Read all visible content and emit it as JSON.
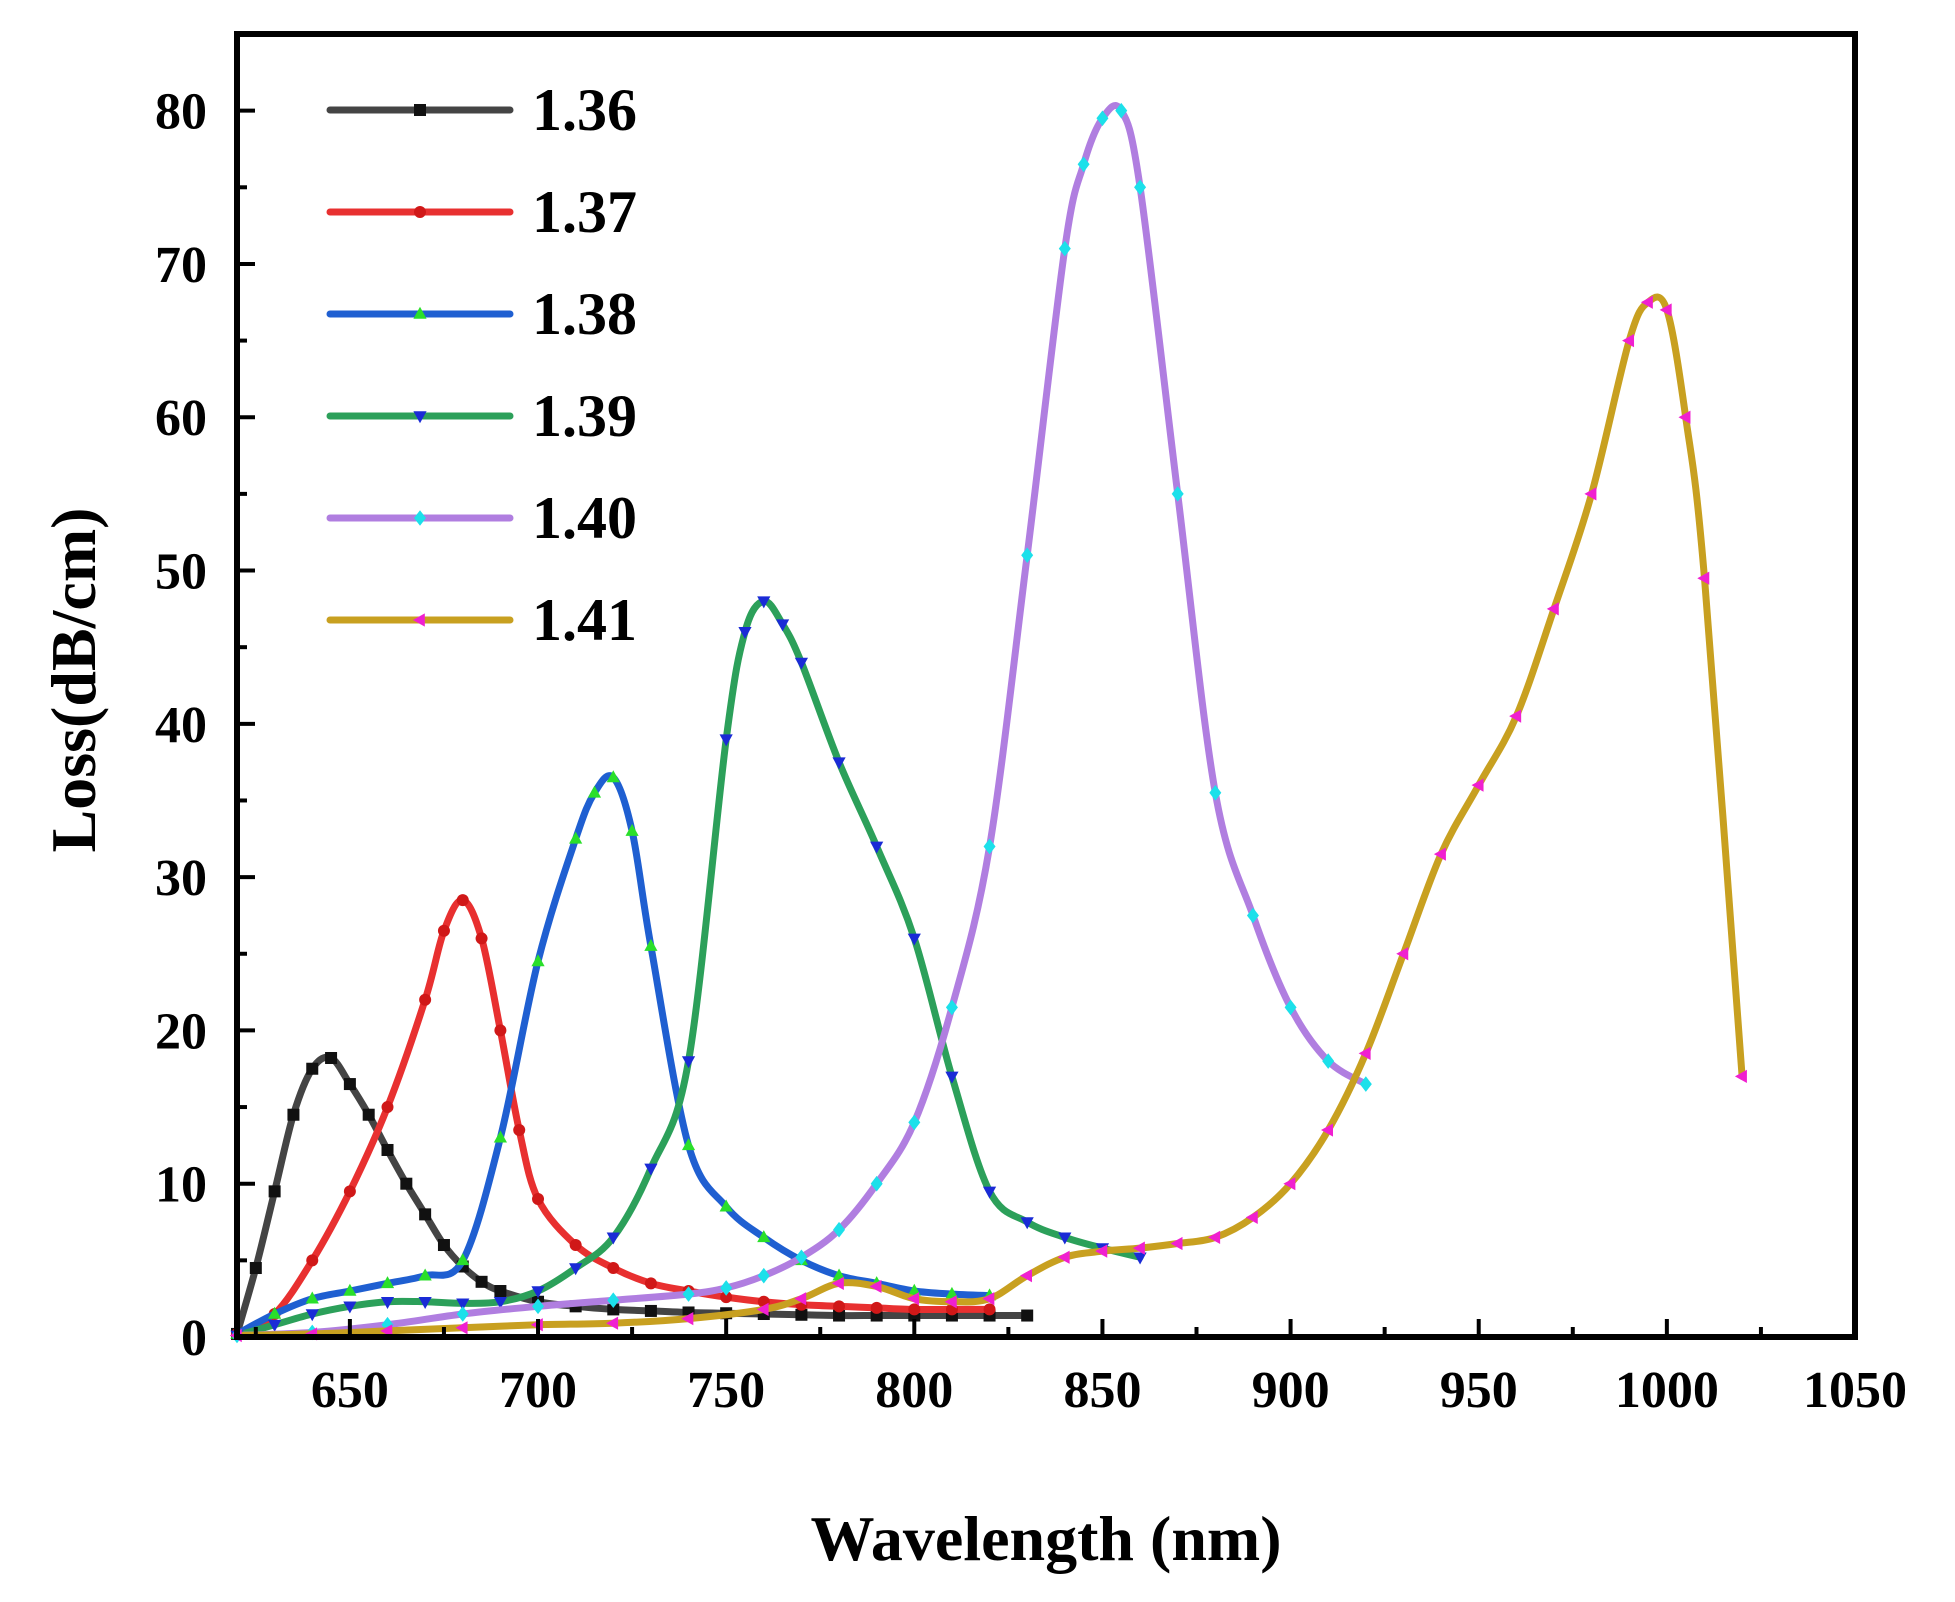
{
  "chart_data": {
    "type": "line",
    "title": "",
    "xlabel": "Wavelength (nm)",
    "ylabel": "Loss(dB/cm)",
    "xlim": [
      620,
      1050
    ],
    "ylim": [
      0,
      85
    ],
    "xticks": [
      650,
      700,
      750,
      800,
      850,
      900,
      950,
      1000,
      1050
    ],
    "yticks": [
      0,
      10,
      20,
      30,
      40,
      50,
      60,
      70,
      80
    ],
    "legend_position": "top-left",
    "grid": false,
    "series": [
      {
        "name": "1.36",
        "color": "#444444",
        "marker": "square",
        "marker_color": "#111111",
        "x": [
          620,
          625,
          630,
          635,
          640,
          645,
          650,
          655,
          660,
          665,
          670,
          675,
          680,
          685,
          690,
          700,
          710,
          720,
          730,
          740,
          750,
          760,
          770,
          780,
          790,
          800,
          810,
          820,
          830
        ],
        "y": [
          0.2,
          4.5,
          9.5,
          14.5,
          17.5,
          18.2,
          16.5,
          14.5,
          12.2,
          10.0,
          8.0,
          6.0,
          4.6,
          3.6,
          3.0,
          2.3,
          2.0,
          1.8,
          1.7,
          1.6,
          1.55,
          1.5,
          1.45,
          1.4,
          1.4,
          1.4,
          1.4,
          1.4,
          1.4
        ]
      },
      {
        "name": "1.37",
        "color": "#e83030",
        "marker": "circle",
        "marker_color": "#d01818",
        "x": [
          620,
          630,
          640,
          650,
          660,
          670,
          675,
          680,
          685,
          690,
          695,
          700,
          710,
          720,
          730,
          740,
          750,
          760,
          770,
          780,
          790,
          800,
          810,
          820
        ],
        "y": [
          0.2,
          1.5,
          5.0,
          9.5,
          15.0,
          22.0,
          26.5,
          28.5,
          26.0,
          20.0,
          13.5,
          9.0,
          6.0,
          4.5,
          3.5,
          3.0,
          2.6,
          2.3,
          2.1,
          2.0,
          1.9,
          1.8,
          1.8,
          1.8
        ]
      },
      {
        "name": "1.38",
        "color": "#1f5fd1",
        "marker": "triangle-up",
        "marker_color": "#2adf2a",
        "x": [
          620,
          630,
          640,
          650,
          660,
          670,
          680,
          690,
          700,
          710,
          715,
          720,
          725,
          730,
          740,
          750,
          760,
          770,
          780,
          790,
          800,
          810,
          820
        ],
        "y": [
          0.2,
          1.5,
          2.5,
          3.0,
          3.5,
          4.0,
          5.0,
          13.0,
          24.5,
          32.5,
          35.5,
          36.5,
          33.0,
          25.5,
          12.5,
          8.5,
          6.5,
          5.0,
          4.0,
          3.5,
          3.0,
          2.8,
          2.7
        ]
      },
      {
        "name": "1.39",
        "color": "#2ca05a",
        "marker": "triangle-down",
        "marker_color": "#1a2bd6",
        "x": [
          620,
          630,
          640,
          650,
          660,
          670,
          680,
          690,
          700,
          710,
          720,
          730,
          740,
          750,
          755,
          760,
          765,
          770,
          780,
          790,
          800,
          810,
          820,
          830,
          840,
          850,
          860
        ],
        "y": [
          0.1,
          0.8,
          1.5,
          2.0,
          2.3,
          2.3,
          2.2,
          2.3,
          3.0,
          4.5,
          6.5,
          11.0,
          18.0,
          39.0,
          46.0,
          48.0,
          46.5,
          44.0,
          37.5,
          32.0,
          26.0,
          17.0,
          9.5,
          7.5,
          6.5,
          5.8,
          5.2
        ]
      },
      {
        "name": "1.40",
        "color": "#b07ee0",
        "marker": "diamond",
        "marker_color": "#1ce0ea",
        "x": [
          620,
          640,
          660,
          680,
          700,
          720,
          740,
          750,
          760,
          770,
          780,
          790,
          800,
          810,
          820,
          830,
          840,
          845,
          850,
          855,
          860,
          870,
          880,
          890,
          900,
          910,
          920
        ],
        "y": [
          0.1,
          0.3,
          0.8,
          1.5,
          2.0,
          2.4,
          2.8,
          3.2,
          4.0,
          5.2,
          7.0,
          10.0,
          14.0,
          21.5,
          32.0,
          51.0,
          71.0,
          76.5,
          79.5,
          80.0,
          75.0,
          55.0,
          35.5,
          27.5,
          21.5,
          18.0,
          16.5
        ]
      },
      {
        "name": "1.41",
        "color": "#c8a020",
        "marker": "triangle-left",
        "marker_color": "#f020d0",
        "x": [
          620,
          640,
          660,
          680,
          700,
          720,
          740,
          760,
          770,
          780,
          790,
          800,
          810,
          820,
          830,
          840,
          850,
          860,
          870,
          880,
          890,
          900,
          910,
          920,
          930,
          940,
          950,
          960,
          970,
          980,
          990,
          995,
          1000,
          1005,
          1010,
          1020
        ],
        "y": [
          0.1,
          0.2,
          0.4,
          0.6,
          0.8,
          0.9,
          1.2,
          1.8,
          2.5,
          3.5,
          3.3,
          2.5,
          2.3,
          2.5,
          4.0,
          5.2,
          5.6,
          5.8,
          6.1,
          6.5,
          7.8,
          10.0,
          13.5,
          18.5,
          25.0,
          31.5,
          36.0,
          40.5,
          47.5,
          55.0,
          65.0,
          67.5,
          67.0,
          60.0,
          49.5,
          17.0
        ]
      }
    ]
  }
}
